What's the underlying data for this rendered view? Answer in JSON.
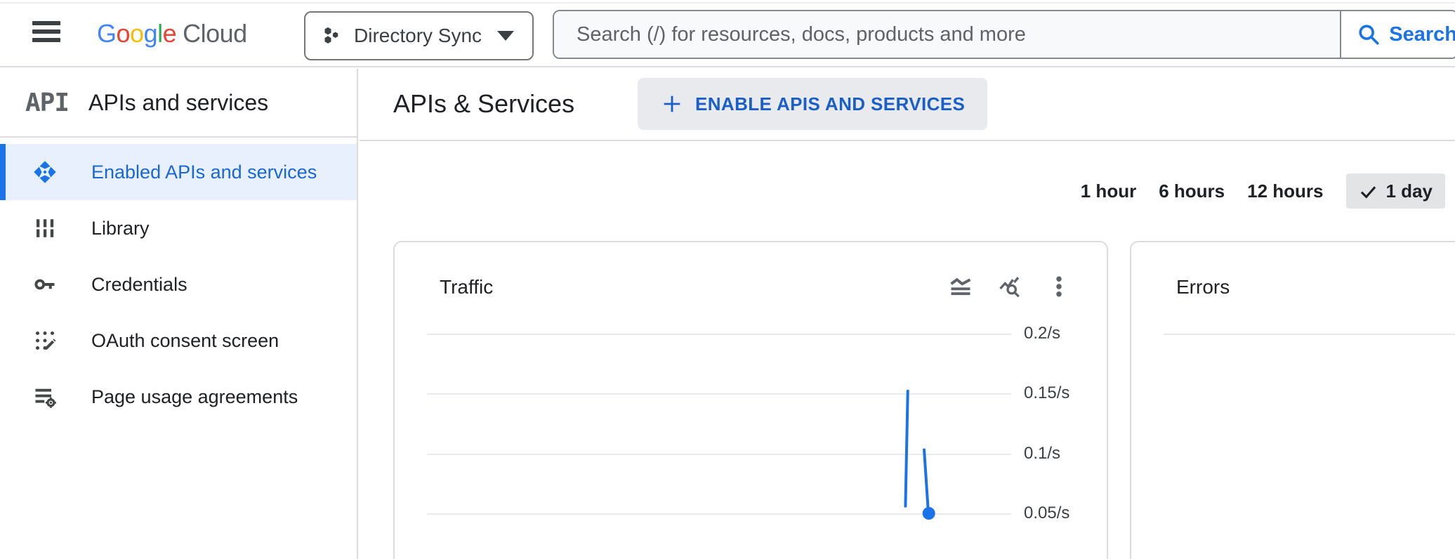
{
  "topbar": {
    "logo_google": "Google",
    "logo_cloud": "Cloud",
    "logo_letter_colors": [
      "#4285F4",
      "#EA4335",
      "#FBBC05",
      "#4285F4",
      "#34A853",
      "#EA4335"
    ],
    "project_selector_label": "Directory Sync",
    "search_placeholder": "Search (/) for resources, docs, products and more",
    "search_button_label": "Search"
  },
  "sidebar": {
    "product_logo": "API",
    "title": "APIs and services",
    "items": [
      {
        "label": "Enabled APIs and services",
        "icon": "enabled-apis-icon",
        "selected": true
      },
      {
        "label": "Library",
        "icon": "library-icon",
        "selected": false
      },
      {
        "label": "Credentials",
        "icon": "key-icon",
        "selected": false
      },
      {
        "label": "OAuth consent screen",
        "icon": "oauth-consent-icon",
        "selected": false
      },
      {
        "label": "Page usage agreements",
        "icon": "page-agreements-icon",
        "selected": false
      }
    ]
  },
  "main": {
    "page_title": "APIs & Services",
    "enable_button_label": "ENABLE APIS AND SERVICES",
    "time_ranges": [
      {
        "label": "1 hour",
        "selected": false
      },
      {
        "label": "6 hours",
        "selected": false
      },
      {
        "label": "12 hours",
        "selected": false
      },
      {
        "label": "1 day",
        "selected": true
      }
    ]
  },
  "cards": {
    "traffic_title": "Traffic",
    "errors_title": "Errors"
  },
  "chart_data": [
    {
      "type": "line",
      "title": "Traffic",
      "time_window": "1 day",
      "y_ticks": [
        "0.2/s",
        "0.15/s",
        "0.1/s",
        "0.05/s"
      ],
      "y_tick_values": [
        0.2,
        0.15,
        0.1,
        0.05
      ],
      "grid": true,
      "legend_position": "none",
      "line_color": "#1a73e8",
      "series": [
        {
          "name": "Traffic",
          "segments": [
            [
              [
                0.823,
                0.152
              ],
              [
                0.819,
                0.056
              ]
            ],
            [
              [
                0.851,
                0.103
              ],
              [
                0.858,
                0.052
              ]
            ]
          ],
          "endpoint": [
            0.859,
            0.05
          ]
        }
      ]
    },
    {
      "type": "line",
      "title": "Errors",
      "y_ticks": [],
      "grid": true,
      "series": []
    }
  ]
}
